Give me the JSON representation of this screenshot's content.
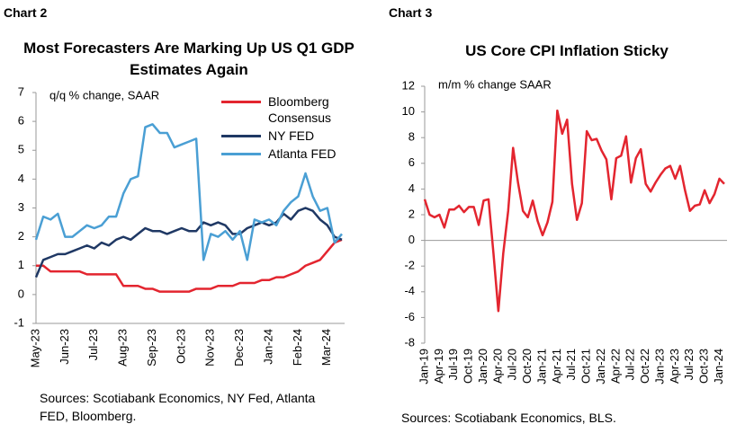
{
  "chart_data": [
    {
      "label": "Chart 2",
      "type": "line",
      "title": "Most Forecasters Are Marking Up US Q1 GDP Estimates Again",
      "y_label": "q/q % change, SAAR",
      "categories": [
        "May-23",
        null,
        null,
        null,
        "Jun-23",
        null,
        null,
        null,
        "Jul-23",
        null,
        null,
        null,
        "Aug-23",
        null,
        null,
        null,
        "Sep-23",
        null,
        null,
        null,
        "Oct-23",
        null,
        null,
        null,
        "Nov-23",
        null,
        null,
        null,
        "Dec-23",
        null,
        null,
        null,
        "Jan-24",
        null,
        null,
        null,
        "Feb-24",
        null,
        null,
        null,
        "Mar-24",
        null,
        null
      ],
      "series": [
        {
          "name": "Bloomberg Consensus",
          "color": "#e3252f",
          "values": [
            1.0,
            1.0,
            0.8,
            0.8,
            0.8,
            0.8,
            0.8,
            0.7,
            0.7,
            0.7,
            0.7,
            0.7,
            0.3,
            0.3,
            0.3,
            0.2,
            0.2,
            0.1,
            0.1,
            0.1,
            0.1,
            0.1,
            0.2,
            0.2,
            0.2,
            0.3,
            0.3,
            0.3,
            0.4,
            0.4,
            0.4,
            0.5,
            0.5,
            0.6,
            0.6,
            0.7,
            0.8,
            1.0,
            1.1,
            1.2,
            1.5,
            1.8,
            1.9
          ]
        },
        {
          "name": "NY FED",
          "color": "#1f3864",
          "values": [
            0.6,
            1.2,
            1.3,
            1.4,
            1.4,
            1.5,
            1.6,
            1.7,
            1.6,
            1.8,
            1.7,
            1.9,
            2.0,
            1.9,
            2.1,
            2.3,
            2.2,
            2.2,
            2.1,
            2.2,
            2.3,
            2.2,
            2.2,
            2.5,
            2.4,
            2.5,
            2.4,
            2.1,
            2.1,
            2.3,
            2.4,
            2.5,
            2.4,
            2.5,
            2.8,
            2.6,
            2.9,
            3.0,
            2.9,
            2.6,
            2.4,
            2.0,
            1.9
          ]
        },
        {
          "name": "Atlanta FED",
          "color": "#4a9fd4",
          "values": [
            1.9,
            2.7,
            2.6,
            2.8,
            2.0,
            2.0,
            2.2,
            2.4,
            2.3,
            2.4,
            2.7,
            2.7,
            3.5,
            4.0,
            4.1,
            5.8,
            5.9,
            5.6,
            5.6,
            5.1,
            5.2,
            5.3,
            5.4,
            1.2,
            2.1,
            2.0,
            2.2,
            1.9,
            2.2,
            1.2,
            2.6,
            2.5,
            2.6,
            2.4,
            2.9,
            3.2,
            3.4,
            4.2,
            3.4,
            2.9,
            3.0,
            1.8,
            2.1
          ]
        }
      ],
      "ylim": [
        -1,
        7
      ],
      "yticks": [
        -1,
        0,
        1,
        2,
        3,
        4,
        5,
        6,
        7
      ],
      "source": "Sources: Scotiabank Economics, NY Fed, Atlanta FED, Bloomberg."
    },
    {
      "label": "Chart 3",
      "type": "line",
      "title": "US Core CPI Inflation Sticky",
      "y_label": "m/m % change SAAR",
      "categories": [
        "Jan-19",
        null,
        null,
        "Apr-19",
        null,
        null,
        "Jul-19",
        null,
        null,
        "Oct-19",
        null,
        null,
        "Jan-20",
        null,
        null,
        "Apr-20",
        null,
        null,
        "Jul-20",
        null,
        null,
        "Oct-20",
        null,
        null,
        "Jan-21",
        null,
        null,
        "Apr-21",
        null,
        null,
        "Jul-21",
        null,
        null,
        "Oct-21",
        null,
        null,
        "Jan-22",
        null,
        null,
        "Apr-22",
        null,
        null,
        "Jul-22",
        null,
        null,
        "Oct-22",
        null,
        null,
        "Jan-23",
        null,
        null,
        "Apr-23",
        null,
        null,
        "Jul-23",
        null,
        null,
        "Oct-23",
        null,
        null,
        "Jan-24",
        null
      ],
      "values": [
        3.2,
        2.0,
        1.8,
        2.0,
        1.0,
        2.4,
        2.4,
        2.7,
        2.2,
        2.6,
        2.6,
        1.2,
        3.1,
        3.2,
        -1.0,
        -5.5,
        -1.0,
        2.3,
        7.2,
        4.5,
        2.3,
        1.8,
        3.1,
        1.5,
        0.4,
        1.4,
        3.0,
        10.1,
        8.3,
        9.4,
        4.4,
        1.6,
        2.9,
        8.5,
        7.8,
        7.9,
        7.0,
        6.3,
        3.2,
        6.4,
        6.6,
        8.1,
        4.5,
        6.4,
        7.1,
        4.4,
        3.8,
        4.5,
        5.1,
        5.6,
        5.8,
        4.8,
        5.8,
        3.9,
        2.3,
        2.7,
        2.8,
        3.9,
        2.9,
        3.6,
        4.8,
        4.4
      ],
      "color": "#e3252f",
      "ylim": [
        -8,
        12
      ],
      "yticks": [
        -8,
        -6,
        -4,
        -2,
        0,
        2,
        4,
        6,
        8,
        10,
        12
      ],
      "source": "Sources: Scotiabank Economics, BLS."
    }
  ]
}
